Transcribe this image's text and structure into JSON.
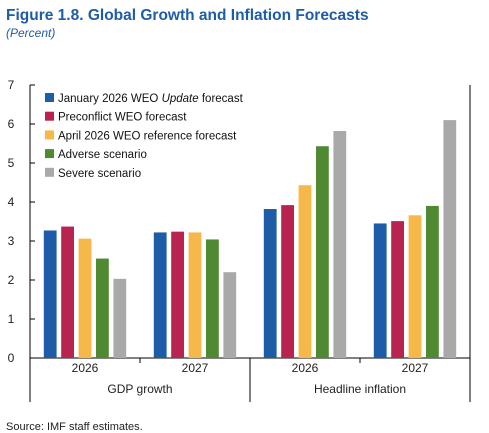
{
  "figure": {
    "title": "Figure 1.8. Global Growth and Inflation Forecasts",
    "subtitle": "(Percent)",
    "source": "Source: IMF staff estimates."
  },
  "colors": {
    "title": "#1f5ca8",
    "series": [
      "#1f5ca8",
      "#b8234f",
      "#f7b84a",
      "#4f8a32",
      "#a9a9a9"
    ]
  },
  "chart_data": {
    "type": "bar",
    "ylim": [
      0,
      7
    ],
    "yticks": [
      0,
      1,
      2,
      3,
      4,
      5,
      6,
      7
    ],
    "grid": false,
    "legend_position": "top-left",
    "groups": [
      {
        "label": "GDP growth",
        "categories": [
          "2026",
          "2027"
        ]
      },
      {
        "label": "Headline inflation",
        "categories": [
          "2026",
          "2027"
        ]
      }
    ],
    "categories": [
      "2026",
      "2027",
      "2026",
      "2027"
    ],
    "series": [
      {
        "name_prefix": "January 2026 WEO ",
        "name_emph": "Update",
        "name_suffix": " forecast",
        "values": [
          3.27,
          3.22,
          3.82,
          3.45
        ]
      },
      {
        "name": "Preconflict WEO forecast",
        "values": [
          3.37,
          3.24,
          3.92,
          3.51
        ]
      },
      {
        "name": "April 2026 WEO reference forecast",
        "values": [
          3.06,
          3.22,
          4.43,
          3.66
        ]
      },
      {
        "name": "Adverse scenario",
        "values": [
          2.55,
          3.04,
          5.43,
          3.9
        ]
      },
      {
        "name": "Severe scenario",
        "values": [
          2.03,
          2.2,
          5.82,
          6.1
        ]
      }
    ]
  }
}
